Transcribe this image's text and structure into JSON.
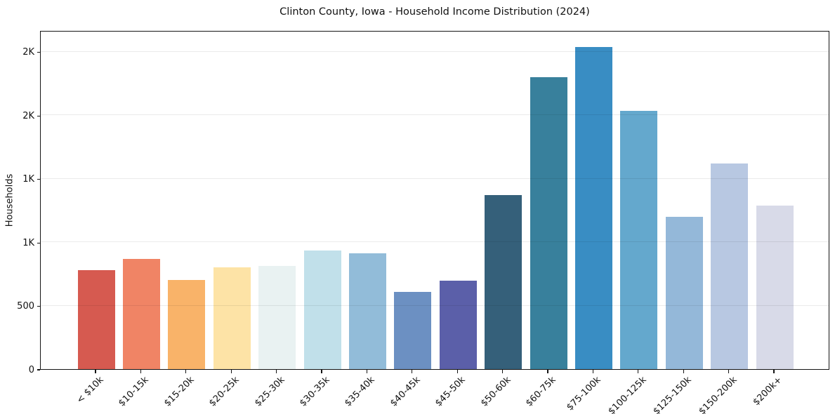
{
  "chart_data": {
    "type": "bar",
    "title": "Clinton County, Iowa - Household Income Distribution (2024)",
    "xlabel": "",
    "ylabel": "Households",
    "categories": [
      "< $10k",
      "$10-15k",
      "$15-20k",
      "$20-25k",
      "$25-30k",
      "$30-35k",
      "$35-40k",
      "$40-45k",
      "$45-50k",
      "$50-60k",
      "$60-75k",
      "$75-100k",
      "$100-125k",
      "$125-150k",
      "$150-200k",
      "$200k+"
    ],
    "values": [
      780,
      870,
      700,
      800,
      810,
      935,
      910,
      610,
      695,
      1370,
      2300,
      2540,
      2035,
      1200,
      1620,
      1290
    ],
    "bar_colors": [
      "#d65a50",
      "#f08465",
      "#f9b369",
      "#fde3a6",
      "#e9f2f2",
      "#c1e0ea",
      "#92bcd9",
      "#6c90c2",
      "#5b5fa9",
      "#35607a",
      "#38809c",
      "#398dc3",
      "#64a8cd",
      "#94b8d9",
      "#b8c8e2",
      "#d8dae8"
    ],
    "ylim": [
      0,
      2670
    ],
    "yticks": [
      {
        "value": 0,
        "label": "0"
      },
      {
        "value": 500,
        "label": "500"
      },
      {
        "value": 1000,
        "label": "1K"
      },
      {
        "value": 1500,
        "label": "1K"
      },
      {
        "value": 2000,
        "label": "2K"
      },
      {
        "value": 2500,
        "label": "2K"
      }
    ],
    "grid": "horizontal",
    "legend_position": "none",
    "background_color": "#ffffff",
    "axis_color": "#141414",
    "xtick_rotation_deg": 45
  }
}
